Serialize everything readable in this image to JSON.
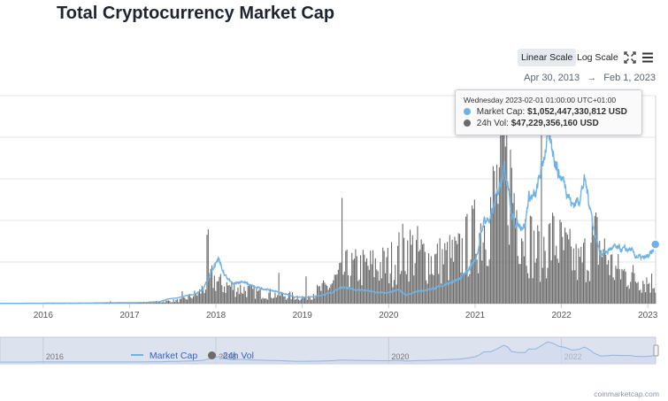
{
  "page": {
    "title": "Total Cryptocurrency Market Cap",
    "credit": "coinmarketcap.com"
  },
  "controls": {
    "linear_scale_label": "Linear Scale",
    "log_scale_label": "Log Scale",
    "active_scale": "linear",
    "fullscreen_icon": "fullscreen-icon",
    "menu_icon": "menu-icon"
  },
  "date_range": {
    "from": "Apr 30, 2013",
    "arrow": "→",
    "to": "Feb 1, 2023"
  },
  "tooltip": {
    "date": "Wednesday 2023-02-01 01:00:00 UTC+01:00",
    "market_cap_label": "Market Cap:",
    "market_cap_value": "$1,052,447,330,812 USD",
    "volume_label": "24h Vol:",
    "volume_value": "$47,229,356,160 USD"
  },
  "legend": [
    {
      "name": "Market Cap",
      "symbol": "line",
      "color": "#6fb2e6"
    },
    {
      "name": "24h Vol",
      "symbol": "dot",
      "color": "#6b6b6b"
    }
  ],
  "colors": {
    "market_cap_line": "#6fb2e6",
    "volume_bars": "#6b6b6b",
    "navigator_fill": "#dde2ef",
    "navigator_line": "#8fb5e0",
    "grid": "#e6e6e6"
  },
  "chart_data": {
    "type": "line",
    "title": "Total Cryptocurrency Market Cap",
    "x_ticks": [
      "2016",
      "2017",
      "2018",
      "2019",
      "2020",
      "2021",
      "2022",
      "2023"
    ],
    "navigator_ticks": [
      "2016",
      "2018",
      "2020",
      "2022"
    ],
    "xlim": [
      2015.5,
      2023.09
    ],
    "ylim_market_cap_billions": [
      0,
      3700
    ],
    "ylim_volume_billions": [
      0,
      440
    ],
    "grid": true,
    "legend_position": "bottom-left",
    "series": [
      {
        "name": "Market Cap",
        "unit": "USD billions",
        "points": [
          [
            2015.5,
            4
          ],
          [
            2016.0,
            7
          ],
          [
            2016.5,
            11
          ],
          [
            2017.0,
            17
          ],
          [
            2017.2,
            20
          ],
          [
            2017.35,
            35
          ],
          [
            2017.45,
            85
          ],
          [
            2017.55,
            100
          ],
          [
            2017.65,
            140
          ],
          [
            2017.75,
            165
          ],
          [
            2017.85,
            250
          ],
          [
            2017.95,
            580
          ],
          [
            2018.03,
            810
          ],
          [
            2018.1,
            500
          ],
          [
            2018.2,
            340
          ],
          [
            2018.3,
            400
          ],
          [
            2018.45,
            290
          ],
          [
            2018.6,
            250
          ],
          [
            2018.75,
            200
          ],
          [
            2018.9,
            120
          ],
          [
            2019.0,
            110
          ],
          [
            2019.2,
            140
          ],
          [
            2019.35,
            200
          ],
          [
            2019.45,
            300
          ],
          [
            2019.55,
            260
          ],
          [
            2019.7,
            240
          ],
          [
            2019.85,
            200
          ],
          [
            2020.0,
            190
          ],
          [
            2020.12,
            250
          ],
          [
            2020.2,
            150
          ],
          [
            2020.35,
            220
          ],
          [
            2020.5,
            260
          ],
          [
            2020.65,
            340
          ],
          [
            2020.8,
            420
          ],
          [
            2020.9,
            550
          ],
          [
            2021.0,
            780
          ],
          [
            2021.05,
            1050
          ],
          [
            2021.1,
            1480
          ],
          [
            2021.18,
            1500
          ],
          [
            2021.25,
            1900
          ],
          [
            2021.33,
            2450
          ],
          [
            2021.38,
            2200
          ],
          [
            2021.42,
            1550
          ],
          [
            2021.5,
            1390
          ],
          [
            2021.58,
            1400
          ],
          [
            2021.62,
            1900
          ],
          [
            2021.7,
            1900
          ],
          [
            2021.78,
            2500
          ],
          [
            2021.84,
            2950
          ],
          [
            2021.9,
            2750
          ],
          [
            2021.97,
            2300
          ],
          [
            2022.04,
            2150
          ],
          [
            2022.12,
            1750
          ],
          [
            2022.2,
            1850
          ],
          [
            2022.27,
            2200
          ],
          [
            2022.33,
            1750
          ],
          [
            2022.38,
            1280
          ],
          [
            2022.45,
            900
          ],
          [
            2022.5,
            900
          ],
          [
            2022.6,
            1000
          ],
          [
            2022.7,
            960
          ],
          [
            2022.8,
            960
          ],
          [
            2022.85,
            850
          ],
          [
            2022.95,
            800
          ],
          [
            2023.05,
            890
          ],
          [
            2023.087,
            1052.45
          ]
        ]
      },
      {
        "name": "24h Vol",
        "unit": "USD billions",
        "points": [
          [
            2015.5,
            1
          ],
          [
            2016.0,
            1
          ],
          [
            2016.5,
            1
          ],
          [
            2017.0,
            2
          ],
          [
            2017.3,
            4
          ],
          [
            2017.6,
            8
          ],
          [
            2017.8,
            25
          ],
          [
            2017.95,
            60
          ],
          [
            2018.05,
            45
          ],
          [
            2018.5,
            25
          ],
          [
            2019.0,
            15
          ],
          [
            2019.3,
            40
          ],
          [
            2019.5,
            80
          ],
          [
            2020.0,
            90
          ],
          [
            2020.2,
            130
          ],
          [
            2020.5,
            100
          ],
          [
            2020.8,
            110
          ],
          [
            2021.0,
            160
          ],
          [
            2021.15,
            200
          ],
          [
            2021.35,
            330
          ],
          [
            2021.5,
            200
          ],
          [
            2021.7,
            120
          ],
          [
            2021.9,
            150
          ],
          [
            2022.2,
            90
          ],
          [
            2022.4,
            150
          ],
          [
            2022.6,
            80
          ],
          [
            2022.85,
            60
          ],
          [
            2023.087,
            47.23
          ]
        ]
      }
    ]
  }
}
